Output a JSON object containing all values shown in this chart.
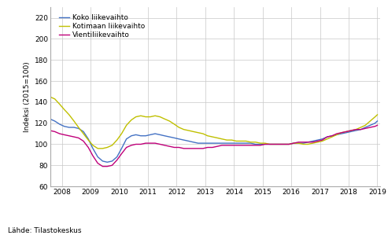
{
  "title": "",
  "ylabel": "Indeksi (2015=100)",
  "source_text": "Lähde: Tilastokeskus",
  "ylim": [
    60,
    230
  ],
  "yticks": [
    60,
    80,
    100,
    120,
    140,
    160,
    180,
    200,
    220
  ],
  "xlim": [
    2007.6,
    2019.1
  ],
  "xticks": [
    2008,
    2009,
    2010,
    2011,
    2012,
    2013,
    2014,
    2015,
    2016,
    2017,
    2018,
    2019
  ],
  "legend_labels": [
    "Koko liikevaihto",
    "Kotimaan liikevaihto",
    "Vientiliikevaihto"
  ],
  "colors": [
    "#4472c4",
    "#c0c000",
    "#c0007a"
  ],
  "line_width": 1.0,
  "koko": [
    2007.58,
    124,
    2007.75,
    122,
    2007.92,
    119,
    2008.08,
    117,
    2008.25,
    116,
    2008.42,
    116,
    2008.58,
    115,
    2008.75,
    112,
    2008.92,
    105,
    2009.08,
    96,
    2009.25,
    88,
    2009.42,
    84,
    2009.58,
    83,
    2009.75,
    84,
    2009.92,
    88,
    2010.08,
    96,
    2010.25,
    105,
    2010.42,
    108,
    2010.58,
    109,
    2010.75,
    108,
    2010.92,
    108,
    2011.08,
    109,
    2011.25,
    110,
    2011.42,
    109,
    2011.58,
    108,
    2011.75,
    107,
    2011.92,
    106,
    2012.08,
    105,
    2012.25,
    104,
    2012.42,
    103,
    2012.58,
    102,
    2012.75,
    101,
    2012.92,
    101,
    2013.08,
    101,
    2013.25,
    101,
    2013.42,
    101,
    2013.58,
    101,
    2013.75,
    101,
    2013.92,
    101,
    2014.08,
    101,
    2014.25,
    101,
    2014.42,
    101,
    2014.58,
    101,
    2014.75,
    100,
    2014.92,
    100,
    2015.08,
    100,
    2015.25,
    100,
    2015.42,
    100,
    2015.58,
    100,
    2015.75,
    100,
    2015.92,
    100,
    2016.08,
    101,
    2016.25,
    101,
    2016.42,
    101,
    2016.58,
    102,
    2016.75,
    103,
    2016.92,
    104,
    2017.08,
    105,
    2017.25,
    107,
    2017.42,
    108,
    2017.58,
    109,
    2017.75,
    110,
    2017.92,
    111,
    2018.08,
    112,
    2018.25,
    113,
    2018.42,
    114,
    2018.58,
    116,
    2018.75,
    118,
    2018.92,
    120,
    2019.0,
    122
  ],
  "kotimaan": [
    2007.58,
    145,
    2007.75,
    143,
    2007.92,
    138,
    2008.08,
    133,
    2008.25,
    128,
    2008.42,
    122,
    2008.58,
    116,
    2008.75,
    110,
    2008.92,
    104,
    2009.08,
    99,
    2009.25,
    96,
    2009.42,
    96,
    2009.58,
    97,
    2009.75,
    99,
    2009.92,
    104,
    2010.08,
    110,
    2010.25,
    118,
    2010.42,
    123,
    2010.58,
    126,
    2010.75,
    127,
    2010.92,
    126,
    2011.08,
    126,
    2011.25,
    127,
    2011.42,
    126,
    2011.58,
    124,
    2011.75,
    122,
    2011.92,
    119,
    2012.08,
    116,
    2012.25,
    114,
    2012.42,
    113,
    2012.58,
    112,
    2012.75,
    111,
    2012.92,
    110,
    2013.08,
    108,
    2013.25,
    107,
    2013.42,
    106,
    2013.58,
    105,
    2013.75,
    104,
    2013.92,
    104,
    2014.08,
    103,
    2014.25,
    103,
    2014.42,
    103,
    2014.58,
    102,
    2014.75,
    102,
    2014.92,
    101,
    2015.08,
    101,
    2015.25,
    100,
    2015.42,
    100,
    2015.58,
    100,
    2015.75,
    100,
    2015.92,
    100,
    2016.08,
    101,
    2016.25,
    101,
    2016.42,
    100,
    2016.58,
    100,
    2016.75,
    101,
    2016.92,
    102,
    2017.08,
    103,
    2017.25,
    105,
    2017.42,
    107,
    2017.58,
    109,
    2017.75,
    111,
    2017.92,
    112,
    2018.08,
    113,
    2018.25,
    114,
    2018.42,
    116,
    2018.58,
    118,
    2018.75,
    122,
    2018.92,
    126,
    2019.0,
    128
  ],
  "vienti": [
    2007.58,
    113,
    2007.75,
    112,
    2007.92,
    110,
    2008.08,
    109,
    2008.25,
    108,
    2008.42,
    107,
    2008.58,
    106,
    2008.75,
    103,
    2008.92,
    97,
    2009.08,
    89,
    2009.25,
    82,
    2009.42,
    79,
    2009.58,
    79,
    2009.75,
    80,
    2009.92,
    85,
    2010.08,
    91,
    2010.25,
    97,
    2010.42,
    99,
    2010.58,
    100,
    2010.75,
    100,
    2010.92,
    101,
    2011.08,
    101,
    2011.25,
    101,
    2011.42,
    100,
    2011.58,
    99,
    2011.75,
    98,
    2011.92,
    97,
    2012.08,
    97,
    2012.25,
    96,
    2012.42,
    96,
    2012.58,
    96,
    2012.75,
    96,
    2012.92,
    96,
    2013.08,
    97,
    2013.25,
    97,
    2013.42,
    98,
    2013.58,
    99,
    2013.75,
    99,
    2013.92,
    99,
    2014.08,
    99,
    2014.25,
    99,
    2014.42,
    99,
    2014.58,
    99,
    2014.75,
    99,
    2014.92,
    99,
    2015.08,
    100,
    2015.25,
    100,
    2015.42,
    100,
    2015.58,
    100,
    2015.75,
    100,
    2015.92,
    100,
    2016.08,
    101,
    2016.25,
    102,
    2016.42,
    102,
    2016.58,
    102,
    2016.75,
    102,
    2016.92,
    103,
    2017.08,
    104,
    2017.25,
    107,
    2017.42,
    108,
    2017.58,
    110,
    2017.75,
    111,
    2017.92,
    112,
    2018.08,
    113,
    2018.25,
    114,
    2018.42,
    114,
    2018.58,
    115,
    2018.75,
    116,
    2018.92,
    117,
    2019.0,
    118
  ],
  "background_color": "#ffffff",
  "grid_color": "#c8c8c8"
}
